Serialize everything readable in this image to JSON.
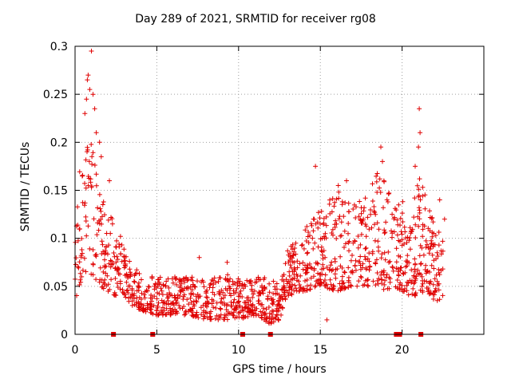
{
  "chart_data": {
    "type": "scatter",
    "title": "Day 289 of 2021, SRMTID for receiver rg08",
    "xlabel": "GPS time / hours",
    "ylabel": "SRMTID / TECUs",
    "xlim": [
      0,
      25
    ],
    "ylim": [
      0,
      0.3
    ],
    "x_ticks": [
      0,
      5,
      10,
      15,
      20
    ],
    "x_tick_labels": [
      "0",
      "5",
      "10",
      "15",
      "20"
    ],
    "y_ticks": [
      0,
      0.05,
      0.1,
      0.15,
      0.2,
      0.25,
      0.3
    ],
    "y_tick_labels": [
      "0",
      "0.05",
      "0.1",
      "0.15",
      "0.2",
      "0.25",
      "0.3"
    ],
    "grid": true,
    "marker": "+",
    "color": "#e00000",
    "envelope": {
      "x": [
        0,
        0.5,
        1,
        1.5,
        2,
        2.5,
        3,
        3.5,
        4,
        5,
        6,
        7,
        8,
        9,
        10,
        11,
        12,
        12.5,
        13,
        14,
        15,
        16,
        17,
        18,
        18.5,
        19,
        19.5,
        20,
        20.5,
        21,
        21.5,
        22,
        22.5
      ],
      "low": [
        0.035,
        0.06,
        0.06,
        0.05,
        0.045,
        0.04,
        0.04,
        0.03,
        0.025,
        0.02,
        0.02,
        0.02,
        0.015,
        0.015,
        0.015,
        0.02,
        0.01,
        0.015,
        0.04,
        0.045,
        0.05,
        0.045,
        0.05,
        0.05,
        0.05,
        0.045,
        0.05,
        0.045,
        0.04,
        0.04,
        0.045,
        0.035,
        0.035
      ],
      "high": [
        0.13,
        0.22,
        0.2,
        0.16,
        0.14,
        0.11,
        0.1,
        0.07,
        0.065,
        0.06,
        0.06,
        0.06,
        0.06,
        0.065,
        0.06,
        0.06,
        0.06,
        0.05,
        0.09,
        0.11,
        0.14,
        0.15,
        0.14,
        0.15,
        0.17,
        0.16,
        0.13,
        0.14,
        0.12,
        0.17,
        0.14,
        0.12,
        0.1
      ]
    },
    "outliers": [
      {
        "x": 0.8,
        "y": 0.27
      },
      {
        "x": 0.75,
        "y": 0.265
      },
      {
        "x": 1.0,
        "y": 0.295
      },
      {
        "x": 0.9,
        "y": 0.255
      },
      {
        "x": 0.7,
        "y": 0.245
      },
      {
        "x": 1.1,
        "y": 0.25
      },
      {
        "x": 1.2,
        "y": 0.235
      },
      {
        "x": 0.6,
        "y": 0.23
      },
      {
        "x": 1.5,
        "y": 0.2
      },
      {
        "x": 1.3,
        "y": 0.21
      },
      {
        "x": 1.6,
        "y": 0.185
      },
      {
        "x": 2.1,
        "y": 0.16
      },
      {
        "x": 7.6,
        "y": 0.08
      },
      {
        "x": 9.3,
        "y": 0.075
      },
      {
        "x": 14.7,
        "y": 0.175
      },
      {
        "x": 16.1,
        "y": 0.155
      },
      {
        "x": 18.7,
        "y": 0.195
      },
      {
        "x": 18.8,
        "y": 0.18
      },
      {
        "x": 21.05,
        "y": 0.235
      },
      {
        "x": 21.1,
        "y": 0.21
      },
      {
        "x": 21.0,
        "y": 0.195
      },
      {
        "x": 20.8,
        "y": 0.175
      },
      {
        "x": 22.3,
        "y": 0.14
      },
      {
        "x": 22.6,
        "y": 0.12
      },
      {
        "x": 15.4,
        "y": 0.015
      },
      {
        "x": 12.6,
        "y": 0.02
      },
      {
        "x": 16.6,
        "y": 0.16
      }
    ],
    "gap_markers": [
      2.3,
      2.35,
      4.7,
      4.75,
      10.2,
      10.25,
      11.9,
      11.95,
      19.6,
      19.65,
      19.7,
      19.75,
      19.8,
      19.85,
      21.1,
      21.15
    ]
  }
}
